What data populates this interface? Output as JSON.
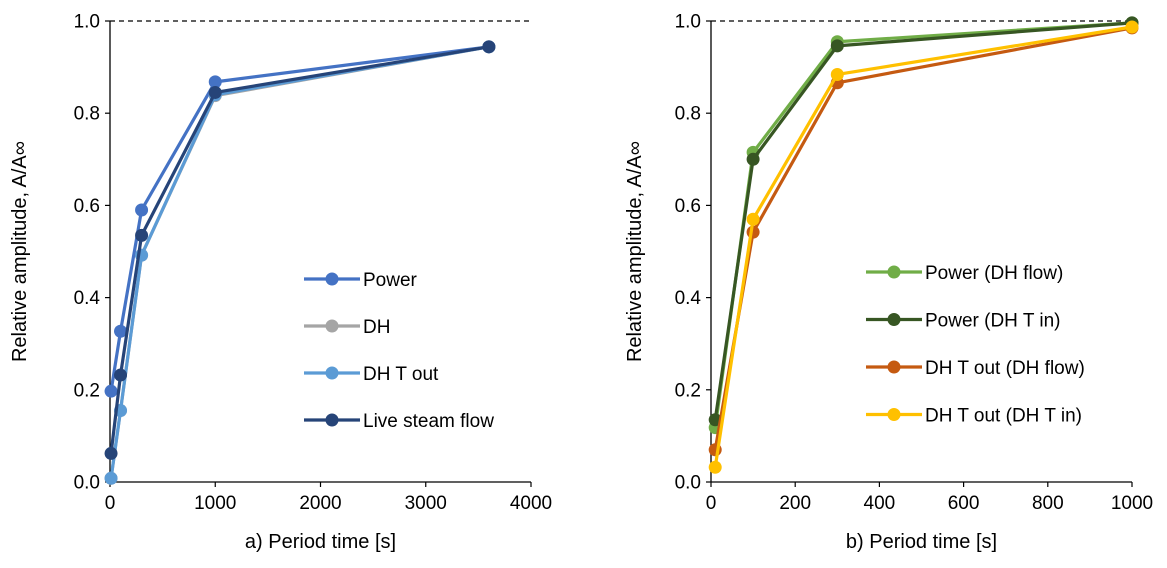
{
  "chart_data": [
    {
      "type": "line",
      "xlabel": "a) Period time [s]",
      "ylabel": "Relative amplitude, A/A∞",
      "xlim": [
        0,
        4000
      ],
      "ylim": [
        0,
        1.0
      ],
      "xticks": [
        "0",
        "1000",
        "2000",
        "3000",
        "4000"
      ],
      "yticks": [
        "0.0",
        "0.2",
        "0.4",
        "0.6",
        "0.8",
        "1.0"
      ],
      "reference_line": {
        "y": 1.0,
        "style": "dashed"
      },
      "legend_position": "lower-right",
      "series": [
        {
          "name": "Power",
          "color": "#4472C4",
          "points": [
            [
              10,
              0.197
            ],
            [
              100,
              0.327
            ],
            [
              300,
              0.59
            ],
            [
              1000,
              0.868
            ],
            [
              3600,
              0.944
            ]
          ]
        },
        {
          "name": "DH",
          "color": "#A5A5A5",
          "points": [
            [
              10,
              0.008
            ],
            [
              100,
              0.155
            ],
            [
              300,
              0.492
            ],
            [
              1000,
              0.838
            ],
            [
              3600,
              0.944
            ]
          ]
        },
        {
          "name": "DH T out",
          "color": "#5B9BD5",
          "points": [
            [
              10,
              0.008
            ],
            [
              100,
              0.155
            ],
            [
              300,
              0.492
            ],
            [
              1000,
              0.84
            ],
            [
              3600,
              0.944
            ]
          ]
        },
        {
          "name": "Live steam flow",
          "color": "#264478",
          "points": [
            [
              10,
              0.062
            ],
            [
              100,
              0.232
            ],
            [
              300,
              0.535
            ],
            [
              1000,
              0.845
            ],
            [
              3600,
              0.944
            ]
          ]
        }
      ]
    },
    {
      "type": "line",
      "xlabel": "b) Period time [s]",
      "ylabel": "Relative amplitude, A/A∞",
      "xlim": [
        0,
        1000
      ],
      "ylim": [
        0,
        1.0
      ],
      "xticks": [
        "0",
        "200",
        "400",
        "600",
        "800",
        "1000"
      ],
      "yticks": [
        "0.0",
        "0.2",
        "0.4",
        "0.6",
        "0.8",
        "1.0"
      ],
      "reference_line": {
        "y": 1.0,
        "style": "dashed"
      },
      "legend_position": "lower-right",
      "series": [
        {
          "name": "Power (DH flow)",
          "color": "#70AD47",
          "points": [
            [
              10,
              0.118
            ],
            [
              100,
              0.715
            ],
            [
              300,
              0.955
            ],
            [
              1000,
              0.996
            ]
          ]
        },
        {
          "name": "Power (DH T in)",
          "color": "#375623",
          "points": [
            [
              10,
              0.135
            ],
            [
              100,
              0.7
            ],
            [
              300,
              0.946
            ],
            [
              1000,
              0.996
            ]
          ]
        },
        {
          "name": "DH T out (DH flow)",
          "color": "#C55A11",
          "points": [
            [
              10,
              0.07
            ],
            [
              100,
              0.542
            ],
            [
              300,
              0.866
            ],
            [
              1000,
              0.985
            ]
          ]
        },
        {
          "name": "DH T out (DH T in)",
          "color": "#FFC000",
          "points": [
            [
              10,
              0.032
            ],
            [
              100,
              0.57
            ],
            [
              300,
              0.884
            ],
            [
              1000,
              0.987
            ]
          ]
        }
      ]
    }
  ]
}
